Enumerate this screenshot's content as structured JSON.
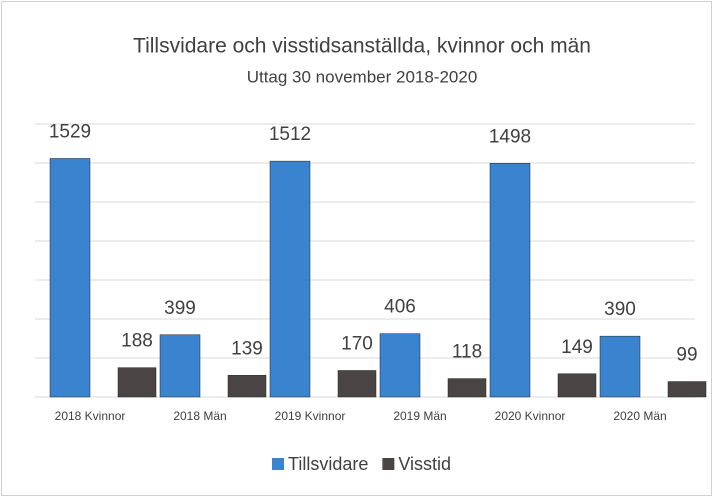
{
  "chart_data": {
    "type": "bar",
    "title": "Tillsvidare och visstidsanställda, kvinnor och män",
    "subtitle": "Uttag 30 november 2018-2020",
    "categories": [
      "2018 Kvinnor",
      "2018 Män",
      "2019 Kvinnor",
      "2019 Män",
      "2020 Kvinnor",
      "2020 Män"
    ],
    "series": [
      {
        "name": "Tillsvidare",
        "color": "#3a83cf",
        "values": [
          1529,
          399,
          1512,
          406,
          1498,
          390
        ]
      },
      {
        "name": "Visstid",
        "color": "#4a4444",
        "values": [
          188,
          139,
          170,
          118,
          149,
          99
        ]
      }
    ],
    "ylim": [
      0,
      1750
    ],
    "yticks": [
      0,
      250,
      500,
      750,
      1000,
      1250,
      1500,
      1750
    ],
    "grid": true,
    "legend": "bottom"
  }
}
